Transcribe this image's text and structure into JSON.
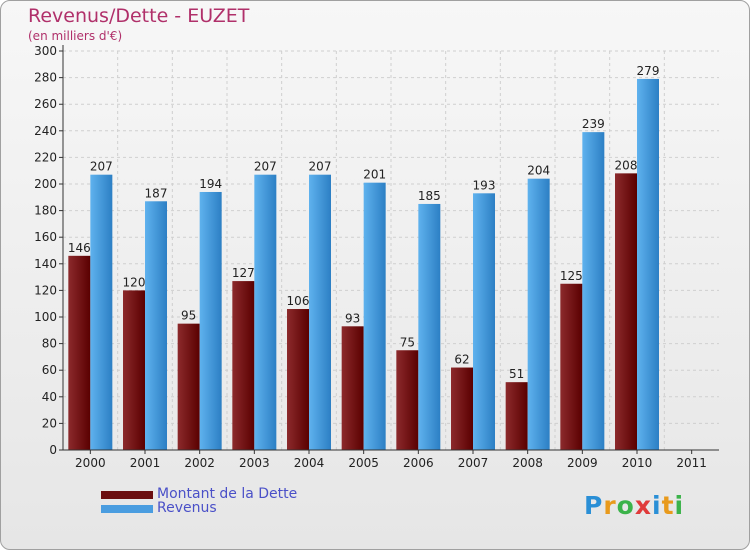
{
  "header": {
    "title": "Revenus/Dette - EUZET",
    "subtitle": "(en milliers d'€)"
  },
  "legend": {
    "items": [
      {
        "label": "Montant de la Dette",
        "color": "#6b0e10"
      },
      {
        "label": "Revenus",
        "color": "#4a9de0"
      }
    ]
  },
  "logo": {
    "text": "Proxiti",
    "colors": [
      "#2a8fd6",
      "#e89a1c",
      "#3bb34a",
      "#e03a3a",
      "#2a8fd6",
      "#e89a1c",
      "#3bb34a"
    ]
  },
  "chart_data": {
    "type": "bar",
    "categories": [
      "2000",
      "2001",
      "2002",
      "2003",
      "2004",
      "2005",
      "2006",
      "2007",
      "2008",
      "2009",
      "2010",
      "2011"
    ],
    "series": [
      {
        "name": "Montant de la Dette",
        "color": "#6b0e10",
        "values": [
          146,
          120,
          95,
          127,
          106,
          93,
          75,
          62,
          51,
          125,
          208,
          null
        ]
      },
      {
        "name": "Revenus",
        "color": "#4a9de0",
        "values": [
          207,
          187,
          194,
          207,
          207,
          201,
          185,
          193,
          204,
          239,
          279,
          null
        ]
      }
    ],
    "ylim": [
      0,
      300
    ],
    "ytick_step": 20,
    "grid": "horizontal",
    "legend_position": "bottom-left"
  }
}
